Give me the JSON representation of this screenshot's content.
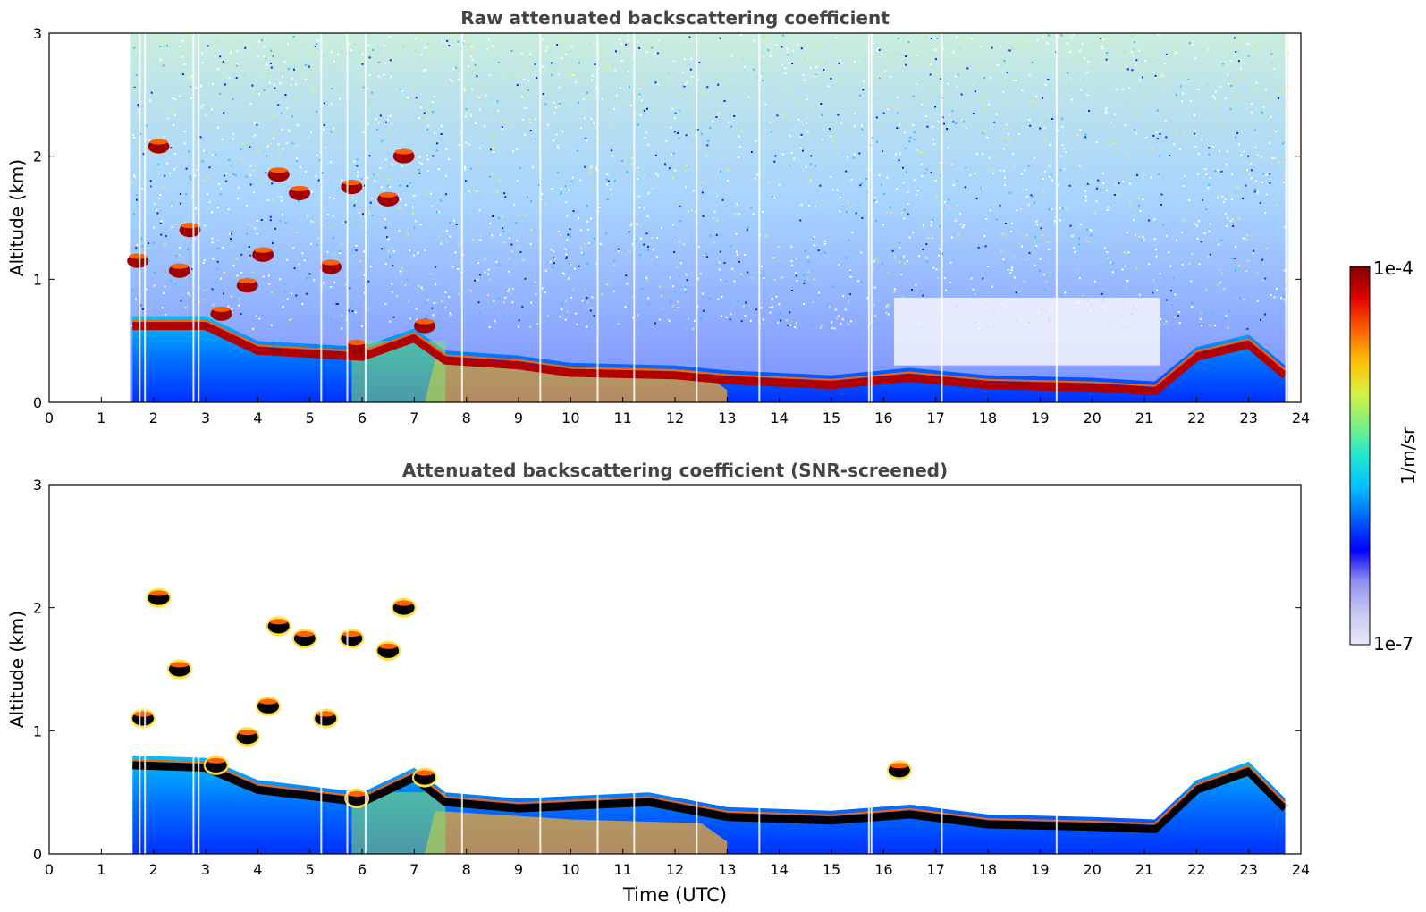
{
  "chart_data": [
    {
      "type": "heatmap",
      "title": "Raw attenuated backscattering coefficient",
      "xlabel": "",
      "ylabel": "Altitude (km)",
      "xlim": [
        0,
        24
      ],
      "ylim": [
        0,
        3
      ],
      "xticks": [
        "0",
        "1",
        "2",
        "3",
        "4",
        "5",
        "6",
        "7",
        "8",
        "9",
        "10",
        "11",
        "12",
        "13",
        "14",
        "15",
        "16",
        "17",
        "18",
        "19",
        "20",
        "21",
        "22",
        "23",
        "24"
      ],
      "yticks": [
        "0",
        "1",
        "2",
        "3"
      ],
      "data_start_utc": 1.55,
      "data_end_utc": 23.75,
      "boundary_layer_top_km": [
        {
          "t": 1.6,
          "h": 0.7
        },
        {
          "t": 3.0,
          "h": 0.7
        },
        {
          "t": 4.0,
          "h": 0.5
        },
        {
          "t": 6.0,
          "h": 0.45
        },
        {
          "t": 7.0,
          "h": 0.6
        },
        {
          "t": 7.6,
          "h": 0.42
        },
        {
          "t": 9.0,
          "h": 0.38
        },
        {
          "t": 10.0,
          "h": 0.32
        },
        {
          "t": 12.0,
          "h": 0.3
        },
        {
          "t": 13.0,
          "h": 0.26
        },
        {
          "t": 15.0,
          "h": 0.22
        },
        {
          "t": 16.5,
          "h": 0.28
        },
        {
          "t": 18.0,
          "h": 0.22
        },
        {
          "t": 20.0,
          "h": 0.2
        },
        {
          "t": 21.2,
          "h": 0.17
        },
        {
          "t": 22.0,
          "h": 0.45
        },
        {
          "t": 23.0,
          "h": 0.55
        },
        {
          "t": 23.7,
          "h": 0.3
        }
      ],
      "cloud_patches": [
        {
          "t": 2.1,
          "h": 2.08
        },
        {
          "t": 1.7,
          "h": 1.15
        },
        {
          "t": 2.5,
          "h": 1.07
        },
        {
          "t": 2.7,
          "h": 1.4
        },
        {
          "t": 3.3,
          "h": 0.72
        },
        {
          "t": 3.8,
          "h": 0.95
        },
        {
          "t": 4.4,
          "h": 1.85
        },
        {
          "t": 4.8,
          "h": 1.7
        },
        {
          "t": 4.1,
          "h": 1.2
        },
        {
          "t": 5.4,
          "h": 1.1
        },
        {
          "t": 5.8,
          "h": 1.75
        },
        {
          "t": 6.5,
          "h": 1.65
        },
        {
          "t": 6.8,
          "h": 2.0
        },
        {
          "t": 5.9,
          "h": 0.45
        },
        {
          "t": 7.2,
          "h": 0.62
        }
      ]
    },
    {
      "type": "heatmap",
      "title": "Attenuated backscattering coefficient (SNR-screened)",
      "xlabel": "Time (UTC)",
      "ylabel": "Altitude (km)",
      "xlim": [
        0,
        24
      ],
      "ylim": [
        0,
        3
      ],
      "xticks": [
        "0",
        "1",
        "2",
        "3",
        "4",
        "5",
        "6",
        "7",
        "8",
        "9",
        "10",
        "11",
        "12",
        "13",
        "14",
        "15",
        "16",
        "17",
        "18",
        "19",
        "20",
        "21",
        "22",
        "23",
        "24"
      ],
      "yticks": [
        "0",
        "1",
        "2",
        "3"
      ],
      "data_start_utc": 1.55,
      "data_end_utc": 23.75,
      "boundary_layer_top_km": [
        {
          "t": 1.6,
          "h": 0.8
        },
        {
          "t": 3.0,
          "h": 0.78
        },
        {
          "t": 4.0,
          "h": 0.6
        },
        {
          "t": 6.0,
          "h": 0.5
        },
        {
          "t": 7.0,
          "h": 0.7
        },
        {
          "t": 7.6,
          "h": 0.5
        },
        {
          "t": 9.0,
          "h": 0.45
        },
        {
          "t": 11.5,
          "h": 0.5
        },
        {
          "t": 13.0,
          "h": 0.38
        },
        {
          "t": 15.0,
          "h": 0.35
        },
        {
          "t": 16.5,
          "h": 0.4
        },
        {
          "t": 18.0,
          "h": 0.32
        },
        {
          "t": 20.0,
          "h": 0.3
        },
        {
          "t": 21.2,
          "h": 0.28
        },
        {
          "t": 22.0,
          "h": 0.6
        },
        {
          "t": 23.0,
          "h": 0.75
        },
        {
          "t": 23.7,
          "h": 0.45
        }
      ],
      "cloud_patches": [
        {
          "t": 2.1,
          "h": 2.08
        },
        {
          "t": 1.8,
          "h": 1.1
        },
        {
          "t": 2.5,
          "h": 1.5
        },
        {
          "t": 3.2,
          "h": 0.72
        },
        {
          "t": 3.8,
          "h": 0.95
        },
        {
          "t": 4.4,
          "h": 1.85
        },
        {
          "t": 4.9,
          "h": 1.75
        },
        {
          "t": 4.2,
          "h": 1.2
        },
        {
          "t": 5.3,
          "h": 1.1
        },
        {
          "t": 5.8,
          "h": 1.75
        },
        {
          "t": 6.5,
          "h": 1.65
        },
        {
          "t": 6.8,
          "h": 2.0
        },
        {
          "t": 5.9,
          "h": 0.45
        },
        {
          "t": 7.2,
          "h": 0.62
        },
        {
          "t": 16.3,
          "h": 0.68
        }
      ]
    }
  ],
  "colorbar": {
    "label": "1/m/sr",
    "max_label": "1e-4",
    "min_label": "1e-7",
    "colors": [
      "#e8e8f8",
      "#c8c8f4",
      "#9090f0",
      "#0000ff",
      "#0060ff",
      "#00c0ff",
      "#20e8d0",
      "#80f080",
      "#d8f040",
      "#ffc000",
      "#ff6000",
      "#e00000",
      "#800000"
    ]
  }
}
